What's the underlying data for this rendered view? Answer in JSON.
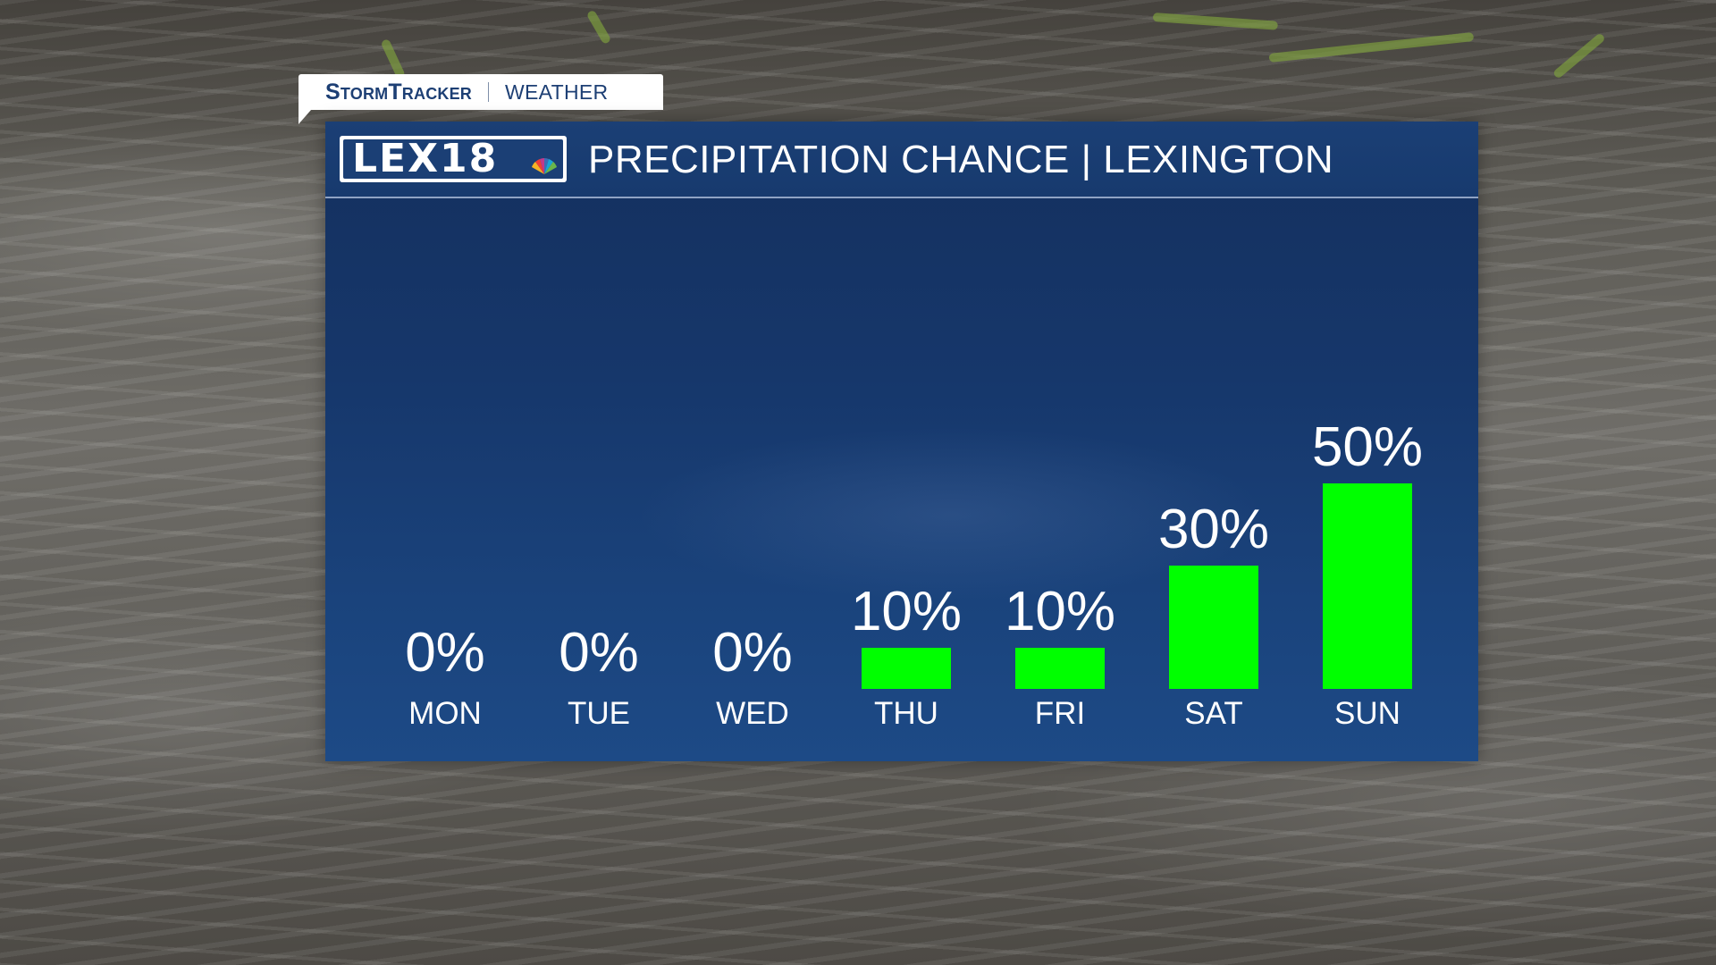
{
  "brand": {
    "name": "StormTracker",
    "section": "WEATHER"
  },
  "station_logo": {
    "text": "LEX18"
  },
  "chart_data": {
    "type": "bar",
    "title": "PRECIPITATION CHANCE | LEXINGTON",
    "categories": [
      "MON",
      "TUE",
      "WED",
      "THU",
      "FRI",
      "SAT",
      "SUN"
    ],
    "values": [
      0,
      0,
      0,
      10,
      10,
      30,
      50
    ],
    "value_labels": [
      "0%",
      "0%",
      "0%",
      "10%",
      "10%",
      "30%",
      "50%"
    ],
    "unit": "%",
    "bar_color": "#00ff00",
    "grid": false,
    "legend": "none"
  },
  "colors": {
    "panel": "#173a6e",
    "brand_text": "#1d3f74",
    "bar": "#00ff00",
    "text": "#ffffff"
  }
}
